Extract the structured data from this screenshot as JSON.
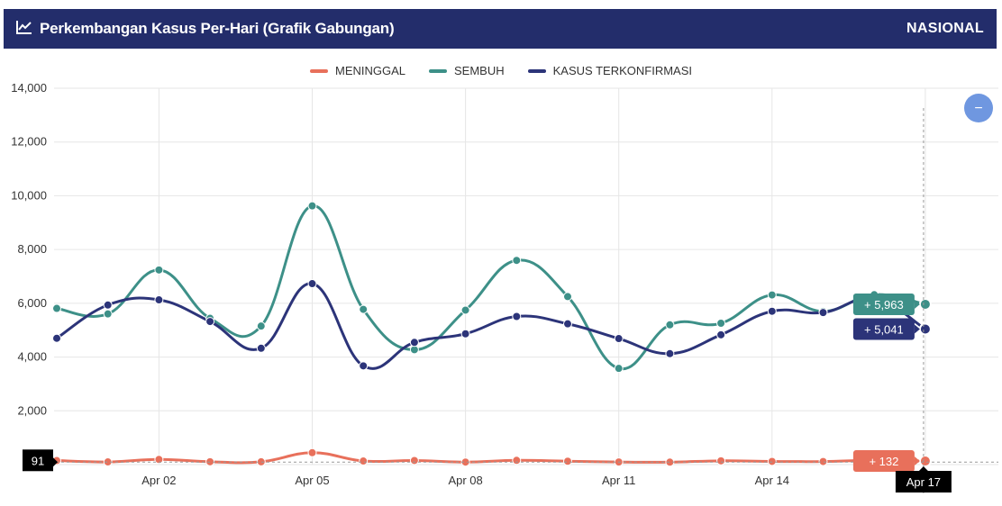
{
  "header": {
    "title": "Perkembangan Kasus Per-Hari (Grafik Gabungan)",
    "region": "NASIONAL",
    "icon": "line-chart-icon"
  },
  "colors": {
    "header_bg": "#232d6b",
    "meninggal": "#e8705b",
    "sembuh": "#3d9088",
    "terkonfirmasi": "#2c3479",
    "zoom_button": "#6f97e0",
    "tooltip_dark": "#000000"
  },
  "zoom_button_label": "−",
  "chart_data": {
    "type": "line",
    "title": "Perkembangan Kasus Per-Hari (Grafik Gabungan)",
    "x": [
      "Mar 31",
      "Apr 01",
      "Apr 02",
      "Apr 03",
      "Apr 04",
      "Apr 05",
      "Apr 06",
      "Apr 07",
      "Apr 08",
      "Apr 09",
      "Apr 10",
      "Apr 11",
      "Apr 12",
      "Apr 13",
      "Apr 14",
      "Apr 15",
      "Apr 16",
      "Apr 17"
    ],
    "x_tick_labels": [
      "Apr 02",
      "Apr 05",
      "Apr 08",
      "Apr 11",
      "Apr 14",
      "Apr 17"
    ],
    "ylim": [
      0,
      14000
    ],
    "y_ticks": [
      0,
      2000,
      4000,
      6000,
      8000,
      10000,
      12000,
      14000
    ],
    "y_tick_labels": [
      "0",
      "2,000",
      "4,000",
      "6,000",
      "8,000",
      "10,000",
      "12,000",
      "14,000"
    ],
    "grid": true,
    "legend_position": "top-center",
    "series": [
      {
        "name": "MENINGGAL",
        "key": "meninggal",
        "values": [
          150,
          99,
          192,
          106,
          104,
          442,
          133,
          152,
          94,
          158,
          126,
          96,
          91,
          140,
          118,
          114,
          160,
          132
        ]
      },
      {
        "name": "SEMBUH",
        "key": "sembuh",
        "values": [
          5810,
          5605,
          7240,
          5441,
          5153,
          9624,
          5775,
          4273,
          5745,
          7596,
          6250,
          3579,
          5198,
          5258,
          6310,
          5700,
          6321,
          5963
        ]
      },
      {
        "name": "KASUS TERKONFIRMASI",
        "key": "terkonfirmasi",
        "values": [
          4699,
          5936,
          6128,
          5322,
          4327,
          6731,
          3673,
          4546,
          4865,
          5510,
          5236,
          4687,
          4127,
          4829,
          5703,
          5656,
          6177,
          5041
        ]
      }
    ],
    "tooltips": {
      "sembuh": "+ 5,963",
      "terkonfirmasi": "+ 5,041",
      "meninggal": "+ 132",
      "y_crosshair": "91",
      "x_crosshair": "Apr 17"
    }
  }
}
